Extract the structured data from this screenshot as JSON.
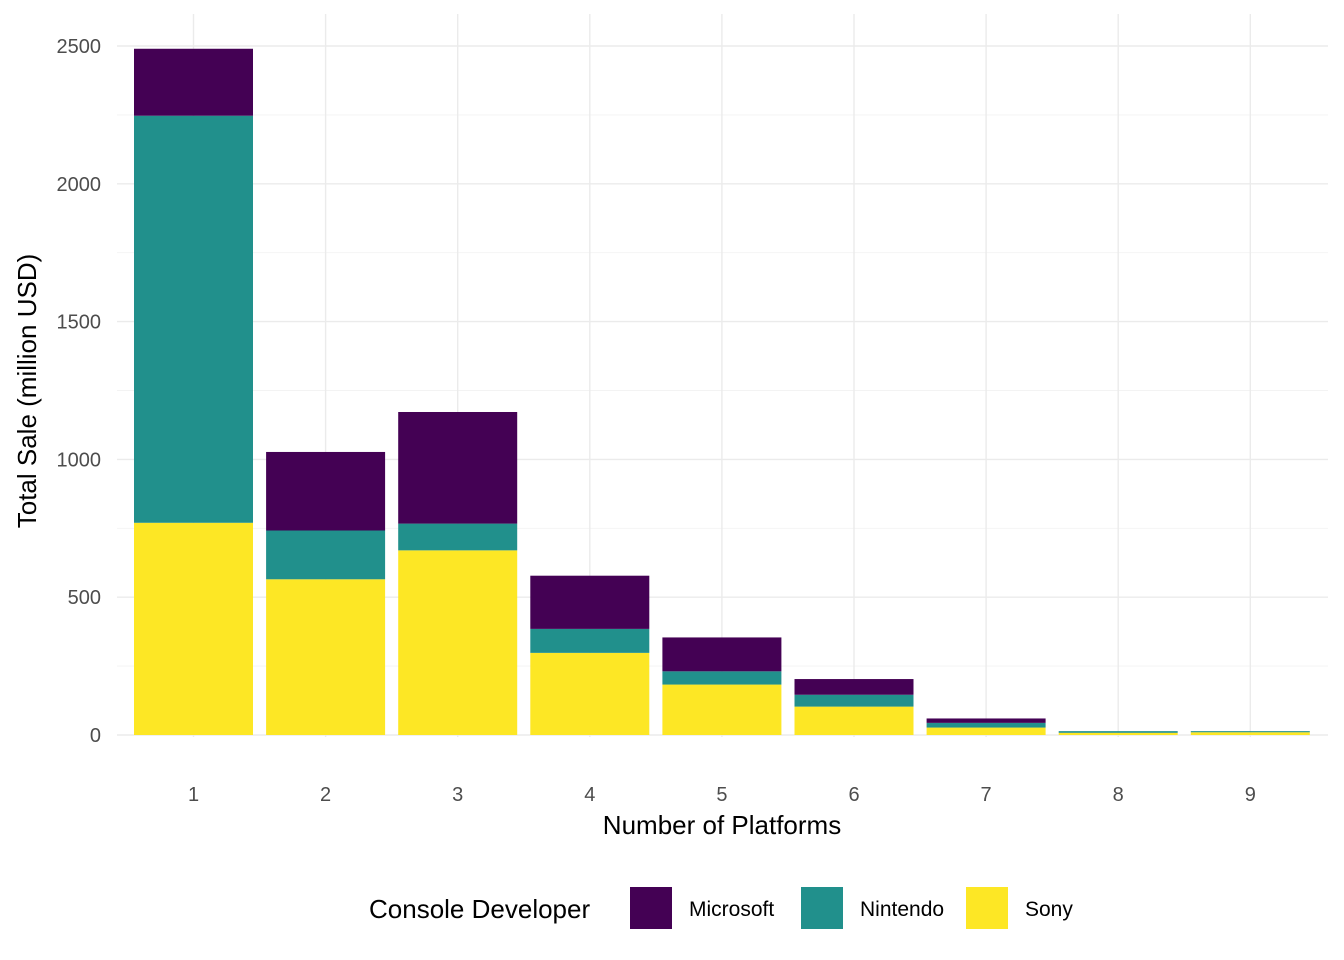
{
  "chart_data": {
    "type": "bar",
    "stacked": true,
    "xlabel": "Number of Platforms",
    "ylabel": "Total Sale (million USD)",
    "categories": [
      "1",
      "2",
      "3",
      "4",
      "5",
      "6",
      "7",
      "8",
      "9"
    ],
    "ylim": [
      0,
      2500
    ],
    "yticks": [
      "0",
      "500",
      "1000",
      "1500",
      "2000",
      "2500"
    ],
    "grid": true,
    "legend": {
      "title": "Console Developer",
      "position": "bottom"
    },
    "series": [
      {
        "name": "Sony",
        "color": "#FDE725",
        "values": [
          770,
          565,
          670,
          298,
          183,
          103,
          27,
          8,
          10
        ]
      },
      {
        "name": "Nintendo",
        "color": "#21908C",
        "values": [
          1477,
          177,
          97,
          87,
          48,
          43,
          17,
          6,
          4
        ]
      },
      {
        "name": "Microsoft",
        "color": "#440154",
        "values": [
          243,
          285,
          405,
          193,
          123,
          57,
          16,
          0,
          0
        ]
      }
    ],
    "legend_order": [
      "Microsoft",
      "Nintendo",
      "Sony"
    ]
  }
}
